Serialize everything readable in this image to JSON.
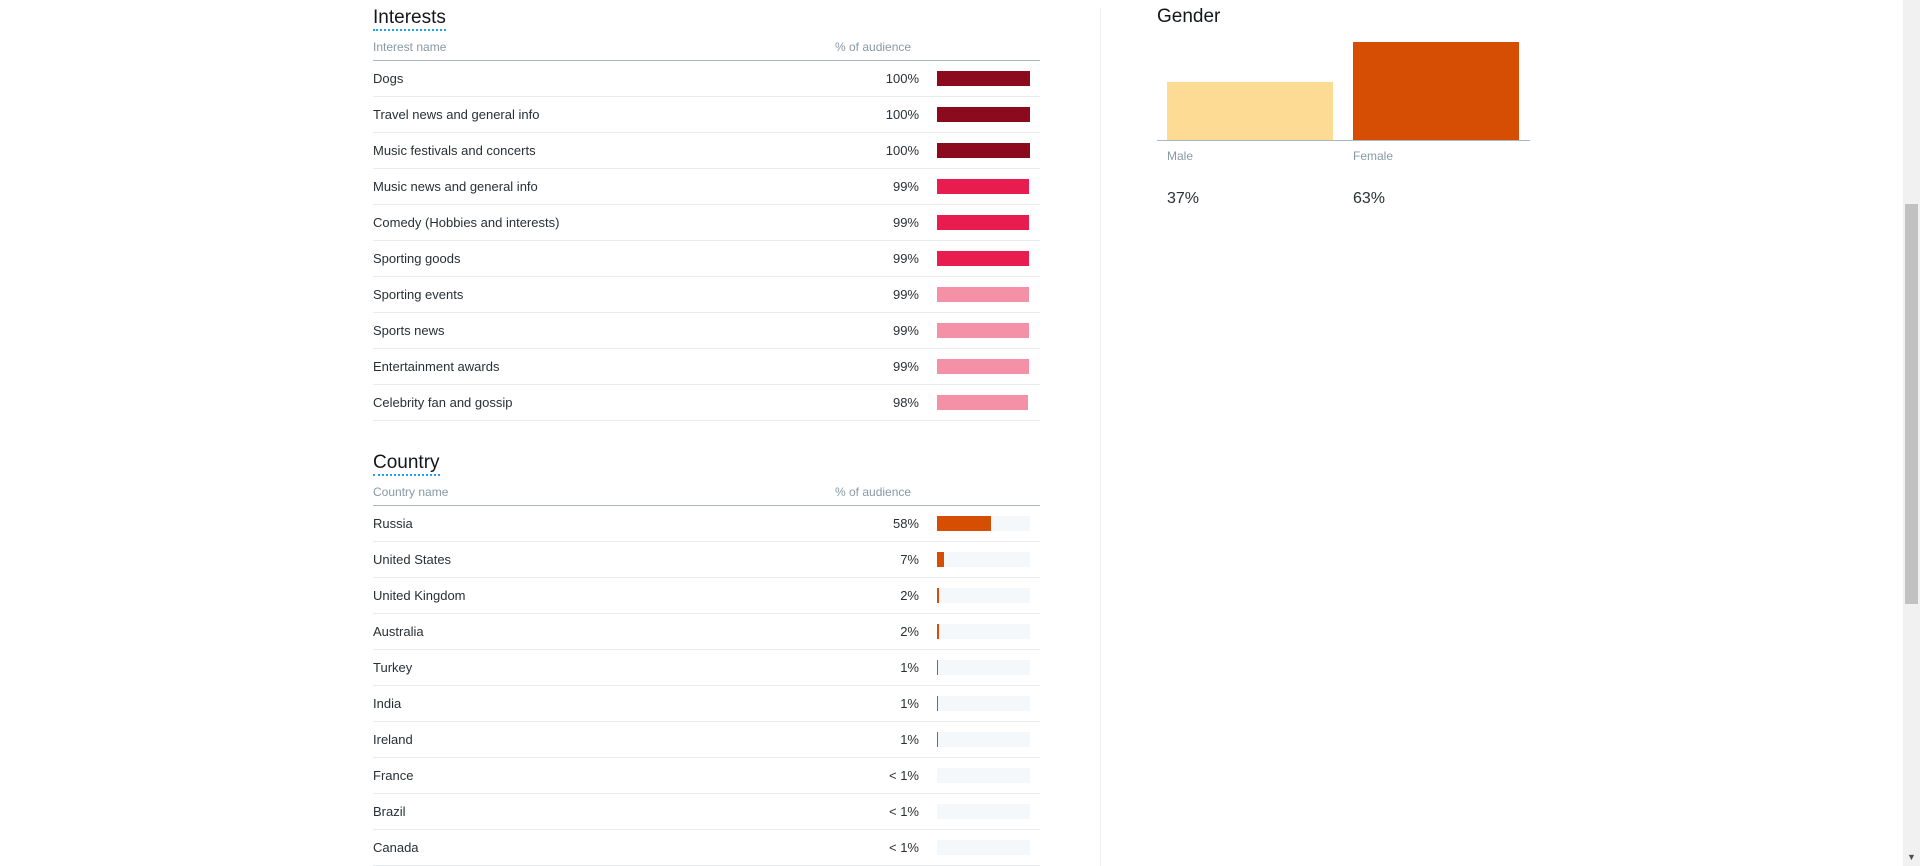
{
  "interests": {
    "title": "Interests",
    "col_name": "Interest name",
    "col_pct": "% of audience",
    "rows": [
      {
        "name": "Dogs",
        "pct_label": "100%",
        "value": 100,
        "color": "#8b0a1d"
      },
      {
        "name": "Travel news and general info",
        "pct_label": "100%",
        "value": 100,
        "color": "#8b0a1d"
      },
      {
        "name": "Music festivals and concerts",
        "pct_label": "100%",
        "value": 100,
        "color": "#8b0a1d"
      },
      {
        "name": "Music news and general info",
        "pct_label": "99%",
        "value": 99,
        "color": "#e81c4f"
      },
      {
        "name": "Comedy (Hobbies and interests)",
        "pct_label": "99%",
        "value": 99,
        "color": "#e81c4f"
      },
      {
        "name": "Sporting goods",
        "pct_label": "99%",
        "value": 99,
        "color": "#e81c4f"
      },
      {
        "name": "Sporting events",
        "pct_label": "99%",
        "value": 99,
        "color": "#f491a6"
      },
      {
        "name": "Sports news",
        "pct_label": "99%",
        "value": 99,
        "color": "#f491a6"
      },
      {
        "name": "Entertainment awards",
        "pct_label": "99%",
        "value": 99,
        "color": "#f491a6"
      },
      {
        "name": "Celebrity fan and gossip",
        "pct_label": "98%",
        "value": 98,
        "color": "#f491a6"
      }
    ]
  },
  "country": {
    "title": "Country",
    "col_name": "Country name",
    "col_pct": "% of audience",
    "bar_color": "#d54e04",
    "rows": [
      {
        "name": "Russia",
        "pct_label": "58%",
        "value": 58
      },
      {
        "name": "United States",
        "pct_label": "7%",
        "value": 7
      },
      {
        "name": "United Kingdom",
        "pct_label": "2%",
        "value": 2
      },
      {
        "name": "Australia",
        "pct_label": "2%",
        "value": 2
      },
      {
        "name": "Turkey",
        "pct_label": "1%",
        "value": 1
      },
      {
        "name": "India",
        "pct_label": "1%",
        "value": 1
      },
      {
        "name": "Ireland",
        "pct_label": "1%",
        "value": 1
      },
      {
        "name": "France",
        "pct_label": "< 1%",
        "value": 0.5
      },
      {
        "name": "Brazil",
        "pct_label": "< 1%",
        "value": 0.5
      },
      {
        "name": "Canada",
        "pct_label": "< 1%",
        "value": 0.5
      }
    ]
  },
  "gender": {
    "title": "Gender",
    "items": [
      {
        "label": "Male",
        "pct_label": "37%",
        "value": 37,
        "color": "#fedb94"
      },
      {
        "label": "Female",
        "pct_label": "63%",
        "value": 63,
        "color": "#d54e04"
      }
    ]
  }
}
